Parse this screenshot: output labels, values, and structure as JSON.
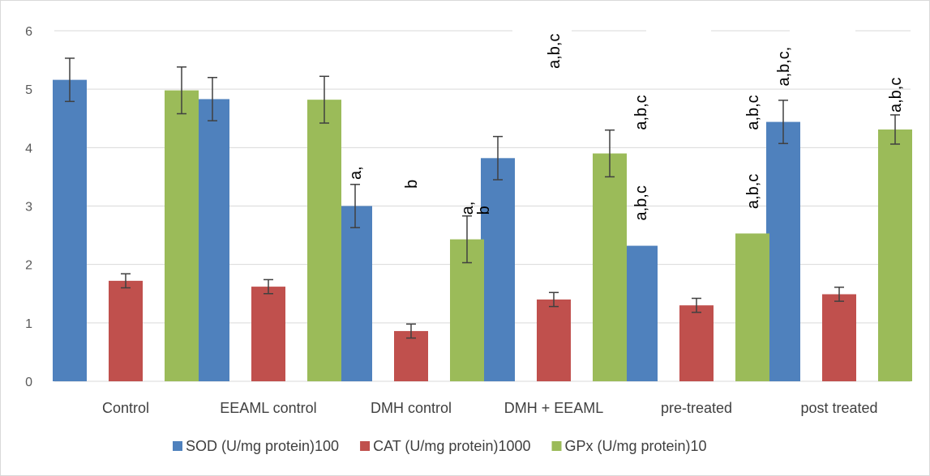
{
  "chart_data": {
    "type": "bar",
    "categories": [
      "Control",
      "EEAML control",
      "DMH control",
      "DMH + EEAML",
      "pre-treated",
      "post treated"
    ],
    "series": [
      {
        "name": "SOD (U/mg protein)100",
        "color": "#4f81bd",
        "values": [
          5.16,
          4.83,
          3.0,
          3.82,
          2.32,
          4.44
        ],
        "errors": [
          0.37,
          0.37,
          0.37,
          0.37,
          null,
          0.37
        ]
      },
      {
        "name": "CAT (U/mg protein)1000",
        "color": "#c0504d",
        "values": [
          1.72,
          1.62,
          0.86,
          1.4,
          1.3,
          1.49
        ],
        "errors": [
          0.12,
          0.12,
          0.12,
          0.12,
          0.12,
          0.12
        ]
      },
      {
        "name": "GPx (U/mg protein)10",
        "color": "#9bbb59",
        "values": [
          4.98,
          4.82,
          2.43,
          3.9,
          2.53,
          4.31
        ],
        "errors": [
          0.4,
          0.4,
          0.4,
          0.4,
          null,
          0.25
        ]
      }
    ],
    "annotations": [
      {
        "text": "a,",
        "category": 2,
        "series": 0,
        "value": 3.45
      },
      {
        "text": "b",
        "category": 2,
        "series": 1,
        "value": 3.3
      },
      {
        "text": "a,",
        "category": 2,
        "series": 2,
        "value": 2.85
      },
      {
        "text": "b",
        "category": 2,
        "series": 2,
        "value": 2.85,
        "column": 2
      },
      {
        "text": "a,b,c",
        "category": 3,
        "series": 1,
        "value": 5.35
      },
      {
        "text": "a,b,c",
        "category": 4,
        "series": 0,
        "value": 2.75
      },
      {
        "text": "a,b,c",
        "category": 4,
        "series": 0,
        "value": 4.3
      },
      {
        "text": "a,b,c",
        "category": 4,
        "series": 2,
        "value": 2.95
      },
      {
        "text": "a,b,c",
        "category": 4,
        "series": 2,
        "value": 4.3
      },
      {
        "text": "a,b,c,",
        "category": 5,
        "series": 0,
        "value": 5.05
      },
      {
        "text": "a,b,c",
        "category": 5,
        "series": 2,
        "value": 4.6
      }
    ],
    "ylim": [
      0,
      6
    ],
    "yticks": [
      0,
      1,
      2,
      3,
      4,
      5,
      6
    ],
    "grid": true,
    "legend_position": "bottom",
    "error_bar_color": "#404040",
    "grid_color": "#d9d9d9"
  }
}
